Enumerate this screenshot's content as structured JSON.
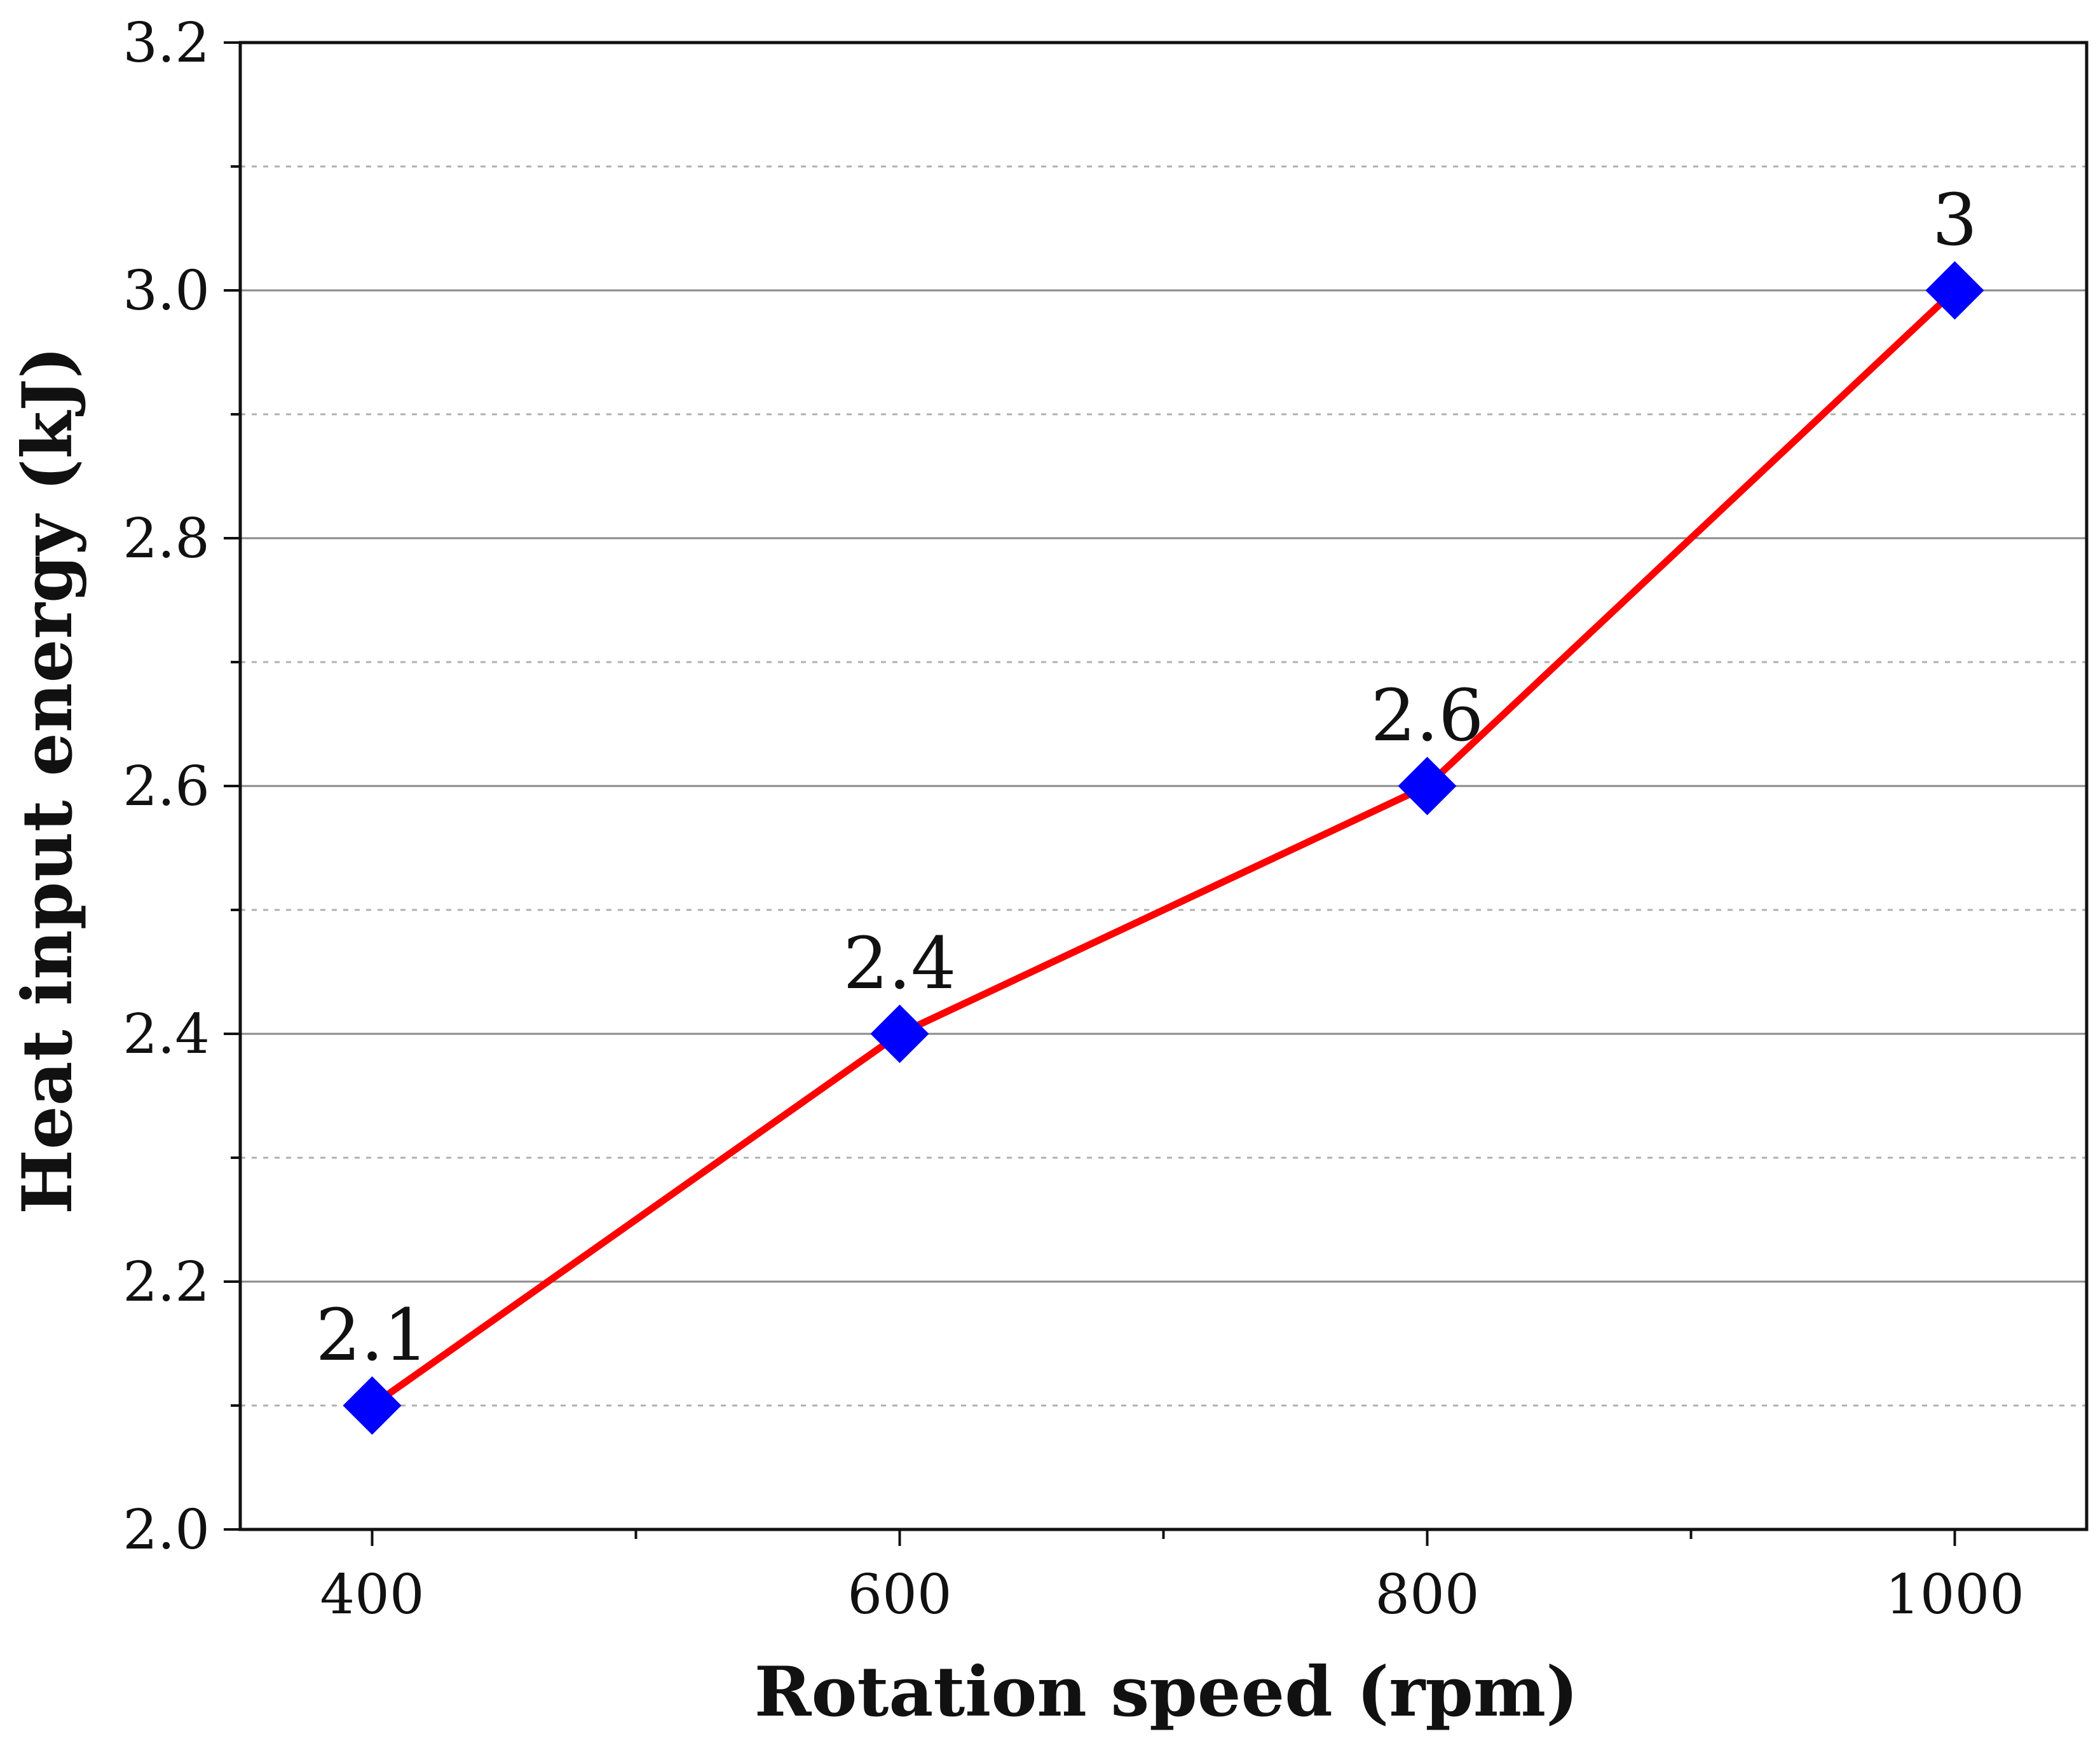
{
  "chart_data": {
    "type": "line",
    "title": "",
    "xlabel": "Rotation speed (rpm)",
    "ylabel": "Heat input energy (kJ)",
    "x": [
      400,
      600,
      800,
      1000
    ],
    "series": [
      {
        "name": "Heat input energy",
        "values": [
          2.1,
          2.4,
          2.6,
          3.0
        ],
        "labels": [
          "2.1",
          "2.4",
          "2.6",
          "3"
        ],
        "line_color": "#ff0000",
        "marker_color": "#0000ff",
        "marker": "diamond"
      }
    ],
    "xlim": [
      350,
      1050
    ],
    "ylim": [
      2.0,
      3.2
    ],
    "x_ticks": [
      400,
      600,
      800,
      1000
    ],
    "x_tick_labels": [
      "400",
      "600",
      "800",
      "1000"
    ],
    "y_ticks": [
      2.0,
      2.2,
      2.4,
      2.6,
      2.8,
      3.0,
      3.2
    ],
    "y_tick_labels": [
      "2.0",
      "2.2",
      "2.4",
      "2.6",
      "2.8",
      "3.0",
      "3.2"
    ],
    "grid": true,
    "legend": "none",
    "colors": {
      "axis": "#111111",
      "major_grid": "#8a8a8a",
      "minor_grid": "#b0b0b0"
    }
  }
}
